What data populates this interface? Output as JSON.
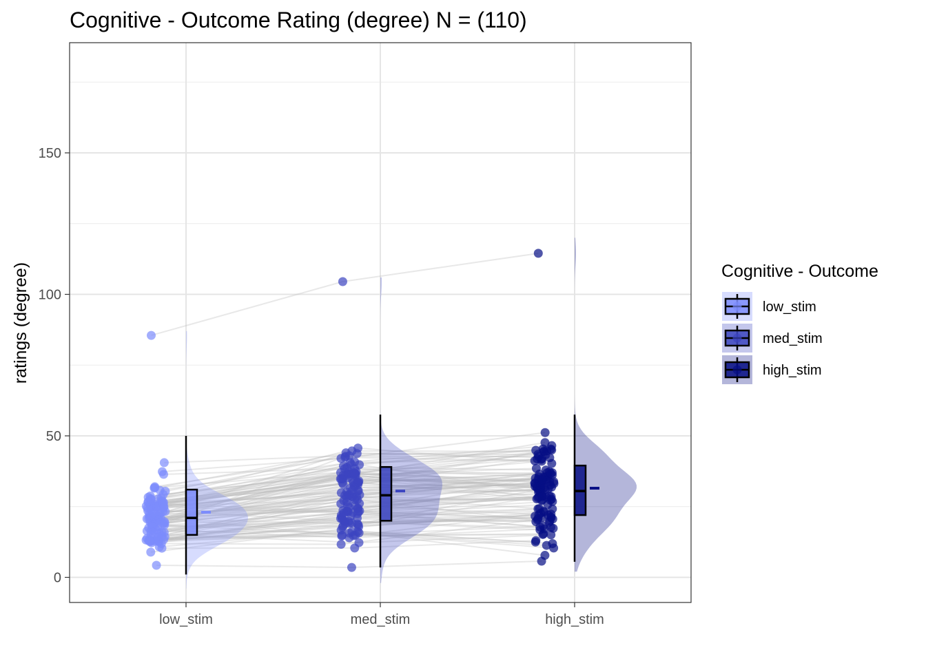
{
  "chart_data": {
    "type": "scatter",
    "plot_style": "raincloud",
    "title": "Cognitive - Outcome Rating (degree) N = (110)",
    "xlabel": "",
    "ylabel": "ratings (degree)",
    "ylim": [
      -8,
      186
    ],
    "y_ticks": [
      0,
      50,
      100,
      150
    ],
    "categories": [
      "low_stim",
      "med_stim",
      "high_stim"
    ],
    "grid": true,
    "legend": {
      "title": "Cognitive - Outcome",
      "position": "right",
      "entries": [
        "low_stim",
        "med_stim",
        "high_stim"
      ]
    },
    "colors": {
      "low_stim": "#7c8cfc",
      "med_stim": "#3c45c0",
      "high_stim": "#060e84",
      "paired_lines": "#bdbdbd",
      "grid": "#e5e5e5"
    },
    "series": [
      {
        "name": "low_stim",
        "box": {
          "min": 1,
          "q1": 15,
          "median": 21,
          "q3": 31,
          "max": 50
        },
        "mean": 23,
        "outliers": [
          85.5
        ],
        "density_range": [
          -4,
          87
        ],
        "density_peak": 21
      },
      {
        "name": "med_stim",
        "box": {
          "min": 3.5,
          "q1": 20,
          "median": 29,
          "q3": 39,
          "max": 57.5
        },
        "mean": 30.5,
        "outliers": [
          104.5
        ],
        "density_range": [
          -2,
          106
        ],
        "density_peak": 30
      },
      {
        "name": "high_stim",
        "box": {
          "min": 5.5,
          "q1": 22,
          "median": 30.5,
          "q3": 39.5,
          "max": 57.5
        },
        "mean": 31.5,
        "outliers": [
          114.5
        ],
        "density_range": [
          2,
          120
        ],
        "density_peak": 30.5
      }
    ],
    "n_subjects": 110,
    "paired_outlier_subject": [
      85.5,
      104.5,
      114.5
    ],
    "value_ranges": {
      "low_stim": [
        1,
        50
      ],
      "med_stim": [
        3.5,
        57.5
      ],
      "high_stim": [
        5.5,
        57.5
      ]
    }
  }
}
